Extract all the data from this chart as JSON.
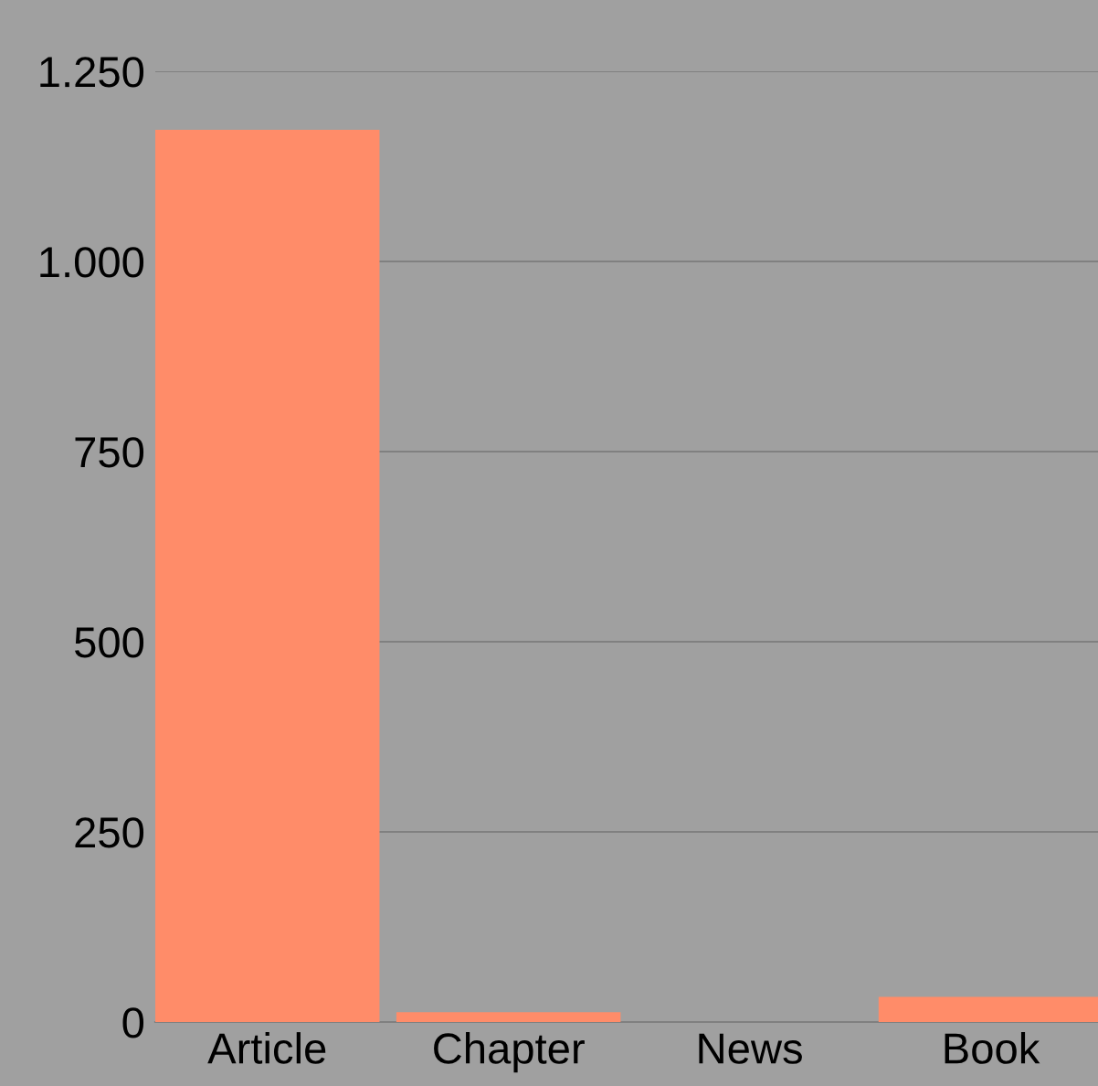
{
  "chart_data": {
    "type": "bar",
    "categories": [
      "Article",
      "Chapter",
      "News",
      "Book"
    ],
    "values": [
      1173,
      13,
      0,
      33
    ],
    "color": "#ff8c69",
    "ylim": [
      0,
      1250
    ],
    "yticks": [
      0,
      250,
      500,
      750,
      {
        "value": 1000,
        "label": "1.000"
      },
      {
        "value": 1250,
        "label": "1.250"
      }
    ],
    "grid": "y"
  }
}
